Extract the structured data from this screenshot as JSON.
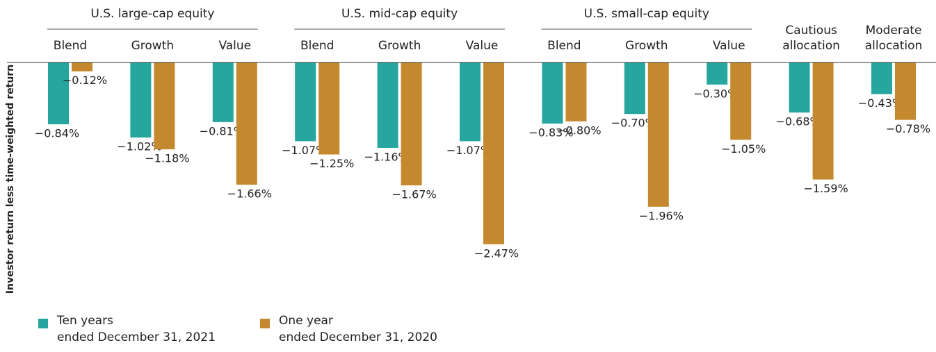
{
  "chart_data": {
    "type": "bar",
    "y_label": "Investor return less time-weighted return",
    "categories": [
      "Blend",
      "Growth",
      "Value",
      "Blend",
      "Growth",
      "Value",
      "Blend",
      "Growth",
      "Value",
      "Cautious\nallocation",
      "Moderate\nallocation"
    ],
    "groups": [
      {
        "label": "U.S. large-cap equity",
        "first": 0,
        "last": 2
      },
      {
        "label": "U.S. mid-cap equity",
        "first": 3,
        "last": 5
      },
      {
        "label": "U.S. small-cap equity",
        "first": 6,
        "last": 8
      }
    ],
    "series": [
      {
        "name": "Ten years\nended December 31, 2021",
        "color": "#26a69f",
        "values": [
          -0.84,
          -1.02,
          -0.81,
          -1.07,
          -1.16,
          -1.07,
          -0.83,
          -0.7,
          -0.3,
          -0.68,
          -0.43
        ],
        "value_labels": [
          "−0.84%",
          "−1.02%",
          "−0.81%",
          "−1.07%",
          "−1.16%",
          "−1.07%",
          "−0.83%",
          "−0.70%",
          "−0.30%",
          "−0.68%",
          "−0.43%"
        ]
      },
      {
        "name": "One year\nended December 31, 2020",
        "color": "#c4892f",
        "values": [
          -0.12,
          -1.18,
          -1.66,
          -1.25,
          -1.67,
          -2.47,
          -0.8,
          -1.96,
          -1.05,
          -1.59,
          -0.78
        ],
        "value_labels": [
          "−0.12%",
          "−1.18%",
          "−1.66%",
          "−1.25%",
          "−1.67%",
          "−2.47%",
          "−0.80%",
          "−1.96%",
          "−1.05%",
          "−1.59%",
          "−0.78%"
        ]
      }
    ],
    "ylim": [
      -3.2,
      0
    ]
  }
}
